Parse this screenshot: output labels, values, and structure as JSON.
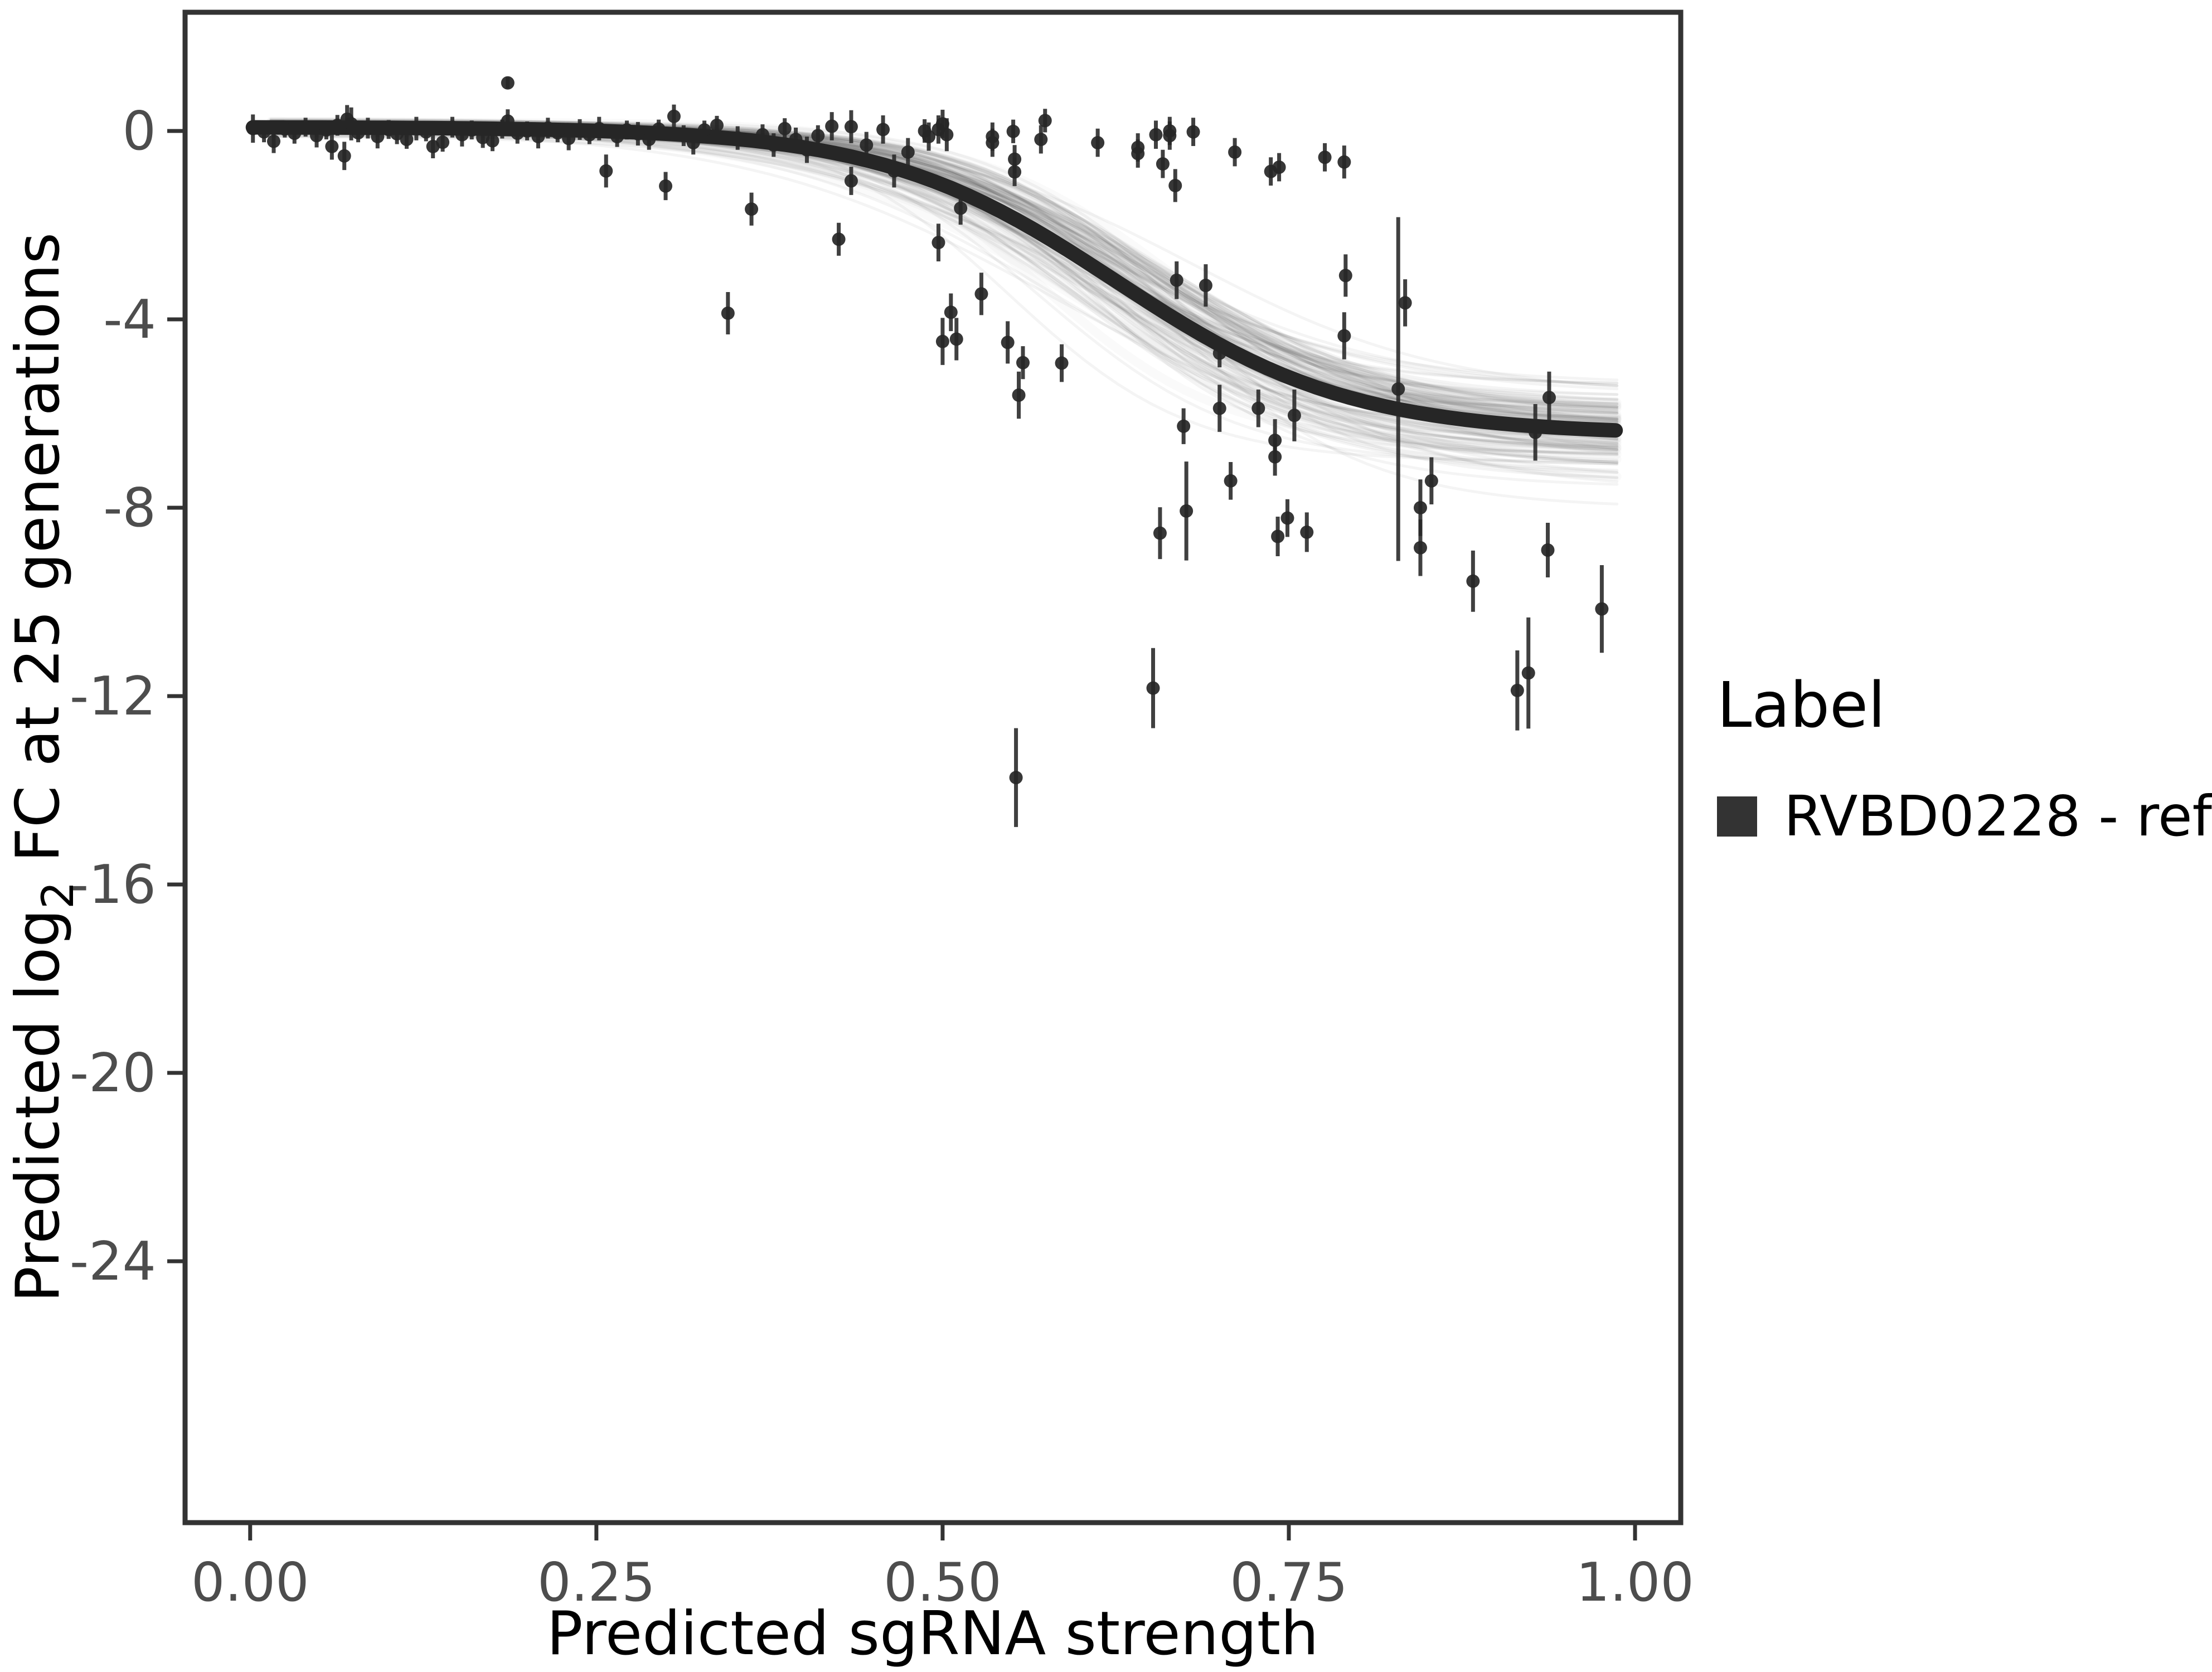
{
  "figure": {
    "xlabel": "Predicted sgRNA strength",
    "ylabel_pre": "Predicted  log",
    "ylabel_sub": "2",
    "ylabel_post": " FC at 25 generations",
    "legend": {
      "title": "Label",
      "items": [
        {
          "label": "RVBD0228 - ref",
          "swatch_color": "#333333"
        }
      ]
    },
    "colors": {
      "point": "#262626",
      "curve": "#262626",
      "band": "#000000",
      "axis_border": "#333333",
      "tick_text": "#4d4d4d"
    }
  },
  "chart_data": {
    "type": "scatter",
    "title": "",
    "xlabel": "Predicted sgRNA strength",
    "ylabel": "Predicted log2 FC at 25 generations",
    "legend_position": "right",
    "grid": false,
    "xlim": [
      -0.047,
      1.033
    ],
    "ylim": [
      -29.55,
      2.52
    ],
    "x_ticks": [
      {
        "v": 0.0,
        "label": "0.00"
      },
      {
        "v": 0.25,
        "label": "0.25"
      },
      {
        "v": 0.5,
        "label": "0.50"
      },
      {
        "v": 0.75,
        "label": "0.75"
      },
      {
        "v": 1.0,
        "label": "1.00"
      }
    ],
    "y_ticks": [
      {
        "v": 0,
        "label": "0"
      },
      {
        "v": -4,
        "label": "-4"
      },
      {
        "v": -8,
        "label": "-8"
      },
      {
        "v": -12,
        "label": "-12"
      },
      {
        "v": -16,
        "label": "-16"
      },
      {
        "v": -20,
        "label": "-20"
      },
      {
        "v": -24,
        "label": "-24"
      }
    ],
    "fit_curve": {
      "a": 0.08,
      "b": -6.45,
      "x0": 0.625,
      "w": 0.085,
      "x_start": 0.002,
      "x_end": 0.99
    },
    "uncertainty_band": {
      "n": 130,
      "seed": 42,
      "a_sd": 0.07,
      "b_sd": 0.52,
      "x0_sd": 0.028,
      "w_sd": 0.013,
      "x_start": 0.015,
      "x_end": 0.992
    },
    "series": [
      {
        "name": "RVBD0228 - ref",
        "points": [
          [
            0.002,
            0.05,
            0.3
          ],
          [
            0.01,
            -0.02,
            0.22
          ],
          [
            0.017,
            -0.22,
            0.25
          ],
          [
            0.025,
            0.04,
            0.18
          ],
          [
            0.032,
            -0.05,
            0.22
          ],
          [
            0.04,
            0.08,
            0.2
          ],
          [
            0.048,
            -0.1,
            0.25
          ],
          [
            0.055,
            0.02,
            0.2
          ],
          [
            0.059,
            -0.33,
            0.28
          ],
          [
            0.063,
            0.12,
            0.22
          ],
          [
            0.068,
            -0.53,
            0.3
          ],
          [
            0.07,
            0.25,
            0.3
          ],
          [
            0.073,
            0.15,
            0.35
          ],
          [
            0.078,
            -0.04,
            0.2
          ],
          [
            0.085,
            0.06,
            0.22
          ],
          [
            0.092,
            -0.12,
            0.25
          ],
          [
            0.1,
            0.03,
            0.2
          ],
          [
            0.106,
            -0.06,
            0.22
          ],
          [
            0.113,
            -0.18,
            0.2
          ],
          [
            0.12,
            0.05,
            0.25
          ],
          [
            0.127,
            -0.02,
            0.2
          ],
          [
            0.132,
            -0.33,
            0.25
          ],
          [
            0.139,
            -0.24,
            0.2
          ],
          [
            0.146,
            0.08,
            0.22
          ],
          [
            0.153,
            -0.08,
            0.25
          ],
          [
            0.16,
            0.02,
            0.2
          ],
          [
            0.168,
            -0.14,
            0.22
          ],
          [
            0.175,
            -0.21,
            0.22
          ],
          [
            0.182,
            0.04,
            0.2
          ],
          [
            0.186,
            1.02,
            0.12
          ],
          [
            0.186,
            0.21,
            0.25
          ],
          [
            0.193,
            -0.05,
            0.22
          ],
          [
            0.2,
            0.0,
            0.2
          ],
          [
            0.208,
            -0.12,
            0.25
          ],
          [
            0.215,
            0.06,
            0.22
          ],
          [
            0.222,
            -0.04,
            0.2
          ],
          [
            0.23,
            -0.16,
            0.25
          ],
          [
            0.238,
            0.03,
            0.22
          ],
          [
            0.245,
            -0.08,
            0.2
          ],
          [
            0.252,
            0.05,
            0.25
          ],
          [
            0.257,
            -0.85,
            0.35
          ],
          [
            0.265,
            -0.12,
            0.22
          ],
          [
            0.272,
            0.02,
            0.2
          ],
          [
            0.28,
            -0.06,
            0.25
          ],
          [
            0.288,
            -0.18,
            0.22
          ],
          [
            0.295,
            0.04,
            0.2
          ],
          [
            0.3,
            -1.17,
            0.3
          ],
          [
            0.306,
            0.31,
            0.25
          ],
          [
            0.313,
            -0.1,
            0.22
          ],
          [
            0.32,
            -0.25,
            0.25
          ],
          [
            0.328,
            0.02,
            0.2
          ],
          [
            0.337,
            0.12,
            0.2
          ],
          [
            0.345,
            -3.87,
            0.45
          ],
          [
            0.352,
            -0.15,
            0.25
          ],
          [
            0.362,
            -1.66,
            0.35
          ],
          [
            0.37,
            -0.08,
            0.22
          ],
          [
            0.378,
            -0.3,
            0.25
          ],
          [
            0.386,
            0.05,
            0.22
          ],
          [
            0.394,
            -0.18,
            0.25
          ],
          [
            0.402,
            -0.4,
            0.28
          ],
          [
            0.41,
            -0.1,
            0.22
          ],
          [
            0.42,
            0.1,
            0.3
          ],
          [
            0.425,
            -2.3,
            0.35
          ],
          [
            0.434,
            0.09,
            0.35
          ],
          [
            0.434,
            -1.06,
            0.3
          ],
          [
            0.445,
            -0.3,
            0.28
          ],
          [
            0.457,
            0.03,
            0.3
          ],
          [
            0.465,
            -0.85,
            0.35
          ],
          [
            0.475,
            -0.45,
            0.3
          ],
          [
            0.487,
            0.0,
            0.25
          ],
          [
            0.49,
            -0.12,
            0.3
          ],
          [
            0.497,
            0.03,
            0.3
          ],
          [
            0.497,
            -2.37,
            0.4
          ],
          [
            0.5,
            0.15,
            0.3
          ],
          [
            0.5,
            -4.47,
            0.5
          ],
          [
            0.503,
            -0.08,
            0.35
          ],
          [
            0.506,
            -3.85,
            0.4
          ],
          [
            0.51,
            -4.42,
            0.45
          ],
          [
            0.513,
            -1.64,
            0.35
          ],
          [
            0.528,
            -3.46,
            0.45
          ],
          [
            0.536,
            -0.12,
            0.3
          ],
          [
            0.536,
            -0.25,
            0.3
          ],
          [
            0.547,
            -4.49,
            0.45
          ],
          [
            0.551,
            -0.01,
            0.25
          ],
          [
            0.552,
            -0.6,
            0.3
          ],
          [
            0.552,
            -0.87,
            0.3
          ],
          [
            0.553,
            -13.73,
            1.05
          ],
          [
            0.555,
            -5.61,
            0.5
          ],
          [
            0.558,
            -4.92,
            0.35
          ],
          [
            0.571,
            -0.18,
            0.3
          ],
          [
            0.574,
            0.22,
            0.25
          ],
          [
            0.586,
            -4.93,
            0.4
          ],
          [
            0.612,
            -0.25,
            0.3
          ],
          [
            0.641,
            -0.35,
            0.3
          ],
          [
            0.641,
            -0.48,
            0.3
          ],
          [
            0.652,
            -11.83,
            0.85
          ],
          [
            0.654,
            -0.08,
            0.3
          ],
          [
            0.657,
            -8.54,
            0.55
          ],
          [
            0.659,
            -0.7,
            0.3
          ],
          [
            0.664,
            0.0,
            0.3
          ],
          [
            0.664,
            -0.1,
            0.3
          ],
          [
            0.668,
            -1.16,
            0.35
          ],
          [
            0.669,
            -3.17,
            0.4
          ],
          [
            0.674,
            -6.27,
            0.38
          ],
          [
            0.676,
            -8.07,
            1.05
          ],
          [
            0.681,
            -0.02,
            0.3
          ],
          [
            0.69,
            -3.28,
            0.45
          ],
          [
            0.7,
            -4.72,
            0.3
          ],
          [
            0.7,
            -5.89,
            0.5
          ],
          [
            0.708,
            -7.43,
            0.4
          ],
          [
            0.711,
            -0.45,
            0.3
          ],
          [
            0.728,
            -5.89,
            0.4
          ],
          [
            0.737,
            -0.86,
            0.3
          ],
          [
            0.74,
            -6.57,
            0.45
          ],
          [
            0.74,
            -6.92,
            0.4
          ],
          [
            0.742,
            -8.61,
            0.42
          ],
          [
            0.743,
            -0.77,
            0.3
          ],
          [
            0.749,
            -8.22,
            0.4
          ],
          [
            0.754,
            -6.04,
            0.55
          ],
          [
            0.763,
            -8.52,
            0.42
          ],
          [
            0.776,
            -0.56,
            0.3
          ],
          [
            0.79,
            -0.66,
            0.35
          ],
          [
            0.79,
            -4.35,
            0.5
          ],
          [
            0.791,
            -3.07,
            0.45
          ],
          [
            0.829,
            -5.48,
            3.65
          ],
          [
            0.834,
            -3.65,
            0.5
          ],
          [
            0.845,
            -8.0,
            0.6
          ],
          [
            0.845,
            -8.85,
            0.6
          ],
          [
            0.853,
            -7.43,
            0.5
          ],
          [
            0.883,
            -9.56,
            0.65
          ],
          [
            0.915,
            -11.88,
            0.85
          ],
          [
            0.923,
            -11.51,
            1.18
          ],
          [
            0.928,
            -6.4,
            0.6
          ],
          [
            0.937,
            -8.9,
            0.58
          ],
          [
            0.938,
            -5.66,
            0.55
          ],
          [
            0.976,
            -10.15,
            0.93
          ]
        ]
      }
    ]
  }
}
